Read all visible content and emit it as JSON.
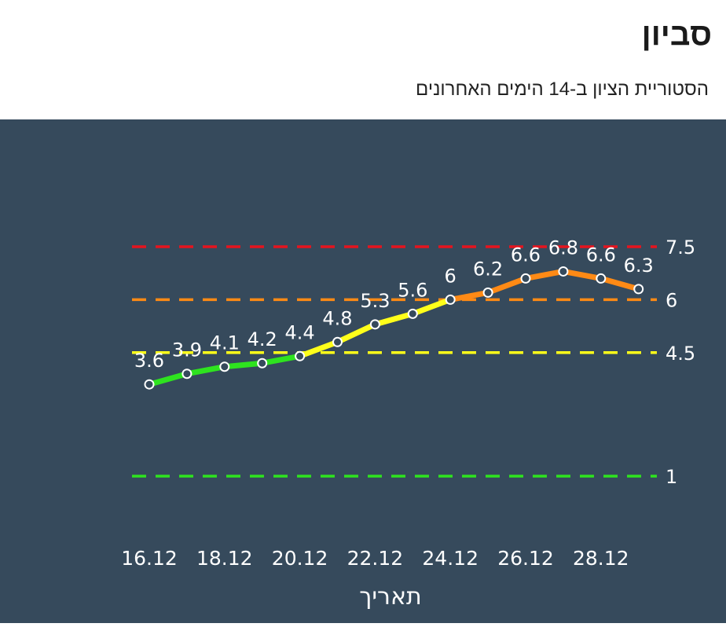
{
  "header": {
    "title": "סביון",
    "subtitle": "הסטוריית הציון ב-14 הימים האחרונים"
  },
  "colors": {
    "panel_bg": "#364a5c",
    "text": "#ffffff",
    "green": "#2ee31f",
    "yellow": "#ffff1a",
    "orange": "#ff8a15",
    "red": "#e5141e"
  },
  "chart_data": {
    "type": "line",
    "xlabel": "תאריך",
    "ylabel": "",
    "ylim": [
      1,
      7.5
    ],
    "x": [
      "16.12",
      "17.12",
      "18.12",
      "19.12",
      "20.12",
      "21.12",
      "22.12",
      "23.12",
      "24.12",
      "25.12",
      "26.12",
      "27.12",
      "28.12",
      "29.12"
    ],
    "x_tick_labels": [
      "16.12",
      "18.12",
      "20.12",
      "22.12",
      "24.12",
      "26.12",
      "28.12"
    ],
    "values": [
      3.6,
      3.9,
      4.1,
      4.2,
      4.4,
      4.8,
      5.3,
      5.6,
      6,
      6.2,
      6.6,
      6.8,
      6.6,
      6.3
    ],
    "value_labels": [
      "3.6",
      "3.9",
      "4.1",
      "4.2",
      "4.4",
      "4.8",
      "5.3",
      "5.6",
      "6",
      "6.2",
      "6.6",
      "6.8",
      "6.6",
      "6.3"
    ],
    "thresholds": [
      {
        "value": 7.5,
        "label": "7.5",
        "color": "#e5141e"
      },
      {
        "value": 6,
        "label": "6",
        "color": "#ff8a15"
      },
      {
        "value": 4.5,
        "label": "4.5",
        "color": "#ffff1a"
      },
      {
        "value": 1,
        "label": "1",
        "color": "#2ee31f"
      }
    ],
    "grid": false,
    "legend": "none"
  }
}
